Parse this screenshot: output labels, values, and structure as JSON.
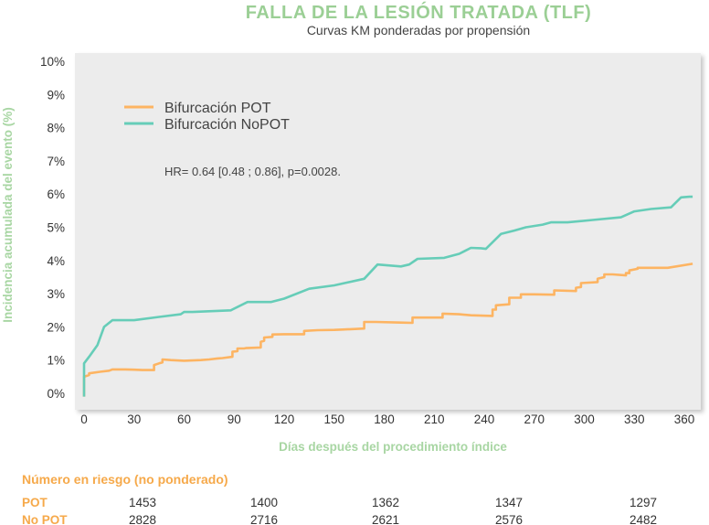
{
  "colors": {
    "title": "#9bcf95",
    "subtitle": "#444444",
    "axis_title": "#a8d6a3",
    "risk_title": "#f6a94a",
    "panel": "#ececec",
    "pot": "#fdb462",
    "nopot": "#66cdb8"
  },
  "chart_data": {
    "type": "line",
    "title": "FALLA DE LA LESIÓN TRATADA (TLF)",
    "subtitle": "Curvas KM ponderadas por propensión",
    "xlabel": "Días después del procedimiento índice",
    "ylabel": "Incidencia acumulada del evento (%)",
    "xlim": [
      0,
      365
    ],
    "ylim": [
      0,
      10
    ],
    "x_ticks": [
      0,
      30,
      60,
      90,
      120,
      150,
      180,
      210,
      240,
      270,
      300,
      330,
      360
    ],
    "y_ticks": [
      0,
      1,
      2,
      3,
      4,
      5,
      6,
      7,
      8,
      9,
      10
    ],
    "y_tick_labels": [
      "0%",
      "1%",
      "2%",
      "3%",
      "4%",
      "5%",
      "6%",
      "7%",
      "8%",
      "9%",
      "10%"
    ],
    "legend_position": "top-left",
    "annotation": "HR= 0.64 [0.48 ; 0.86], p=0.0028.",
    "series": [
      {
        "name": "Bifurcación POT",
        "color": "#fdb462",
        "x": [
          0,
          0,
          3,
          3,
          10,
          15,
          17,
          25,
          30,
          35,
          42,
          42,
          45,
          47,
          47,
          52,
          60,
          65,
          70,
          75,
          80,
          83,
          89,
          89,
          92,
          92,
          96,
          97,
          106,
          106,
          108,
          108,
          113,
          113,
          120,
          132,
          132,
          140,
          150,
          155,
          168,
          168,
          175,
          190,
          197,
          197,
          215,
          215,
          225,
          232,
          245,
          245,
          247,
          247,
          255,
          255,
          262,
          262,
          270,
          282,
          282,
          295,
          295,
          298,
          298,
          308,
          308,
          312,
          312,
          317,
          325,
          325,
          327,
          327,
          332,
          332,
          350,
          365
        ],
        "y": [
          -0.1,
          0.5,
          0.55,
          0.6,
          0.65,
          0.68,
          0.72,
          0.72,
          0.71,
          0.7,
          0.7,
          0.85,
          0.9,
          0.93,
          1.02,
          1.0,
          0.98,
          0.99,
          1.0,
          1.02,
          1.05,
          1.06,
          1.1,
          1.25,
          1.27,
          1.35,
          1.35,
          1.36,
          1.38,
          1.55,
          1.58,
          1.68,
          1.7,
          1.77,
          1.78,
          1.78,
          1.88,
          1.9,
          1.91,
          1.92,
          1.95,
          2.15,
          2.15,
          2.13,
          2.12,
          2.28,
          2.28,
          2.4,
          2.38,
          2.35,
          2.33,
          2.52,
          2.52,
          2.65,
          2.68,
          2.88,
          2.88,
          2.98,
          2.98,
          2.97,
          3.1,
          3.08,
          3.18,
          3.2,
          3.32,
          3.35,
          3.45,
          3.5,
          3.58,
          3.58,
          3.55,
          3.62,
          3.62,
          3.7,
          3.75,
          3.78,
          3.78,
          3.9
        ]
      },
      {
        "name": "Bifurcación NoPOT",
        "color": "#66cdb8",
        "x": [
          0,
          0,
          3,
          8,
          12,
          17,
          30,
          45,
          58,
          60,
          61,
          65,
          88,
          98,
          112,
          120,
          135,
          150,
          168,
          176,
          190,
          195,
          200,
          216,
          225,
          232,
          238,
          241,
          250,
          258,
          265,
          275,
          280,
          290,
          305,
          322,
          330,
          340,
          352,
          358,
          363,
          365
        ],
        "y": [
          -0.1,
          0.9,
          1.1,
          1.45,
          2.0,
          2.2,
          2.2,
          2.3,
          2.38,
          2.45,
          2.45,
          2.45,
          2.5,
          2.75,
          2.75,
          2.85,
          3.15,
          3.25,
          3.45,
          3.88,
          3.82,
          3.88,
          4.05,
          4.08,
          4.2,
          4.38,
          4.37,
          4.35,
          4.8,
          4.9,
          5.0,
          5.08,
          5.15,
          5.15,
          5.22,
          5.3,
          5.48,
          5.55,
          5.6,
          5.9,
          5.92,
          5.92
        ]
      }
    ]
  },
  "risk_table": {
    "title": "Número en riesgo (no ponderado)",
    "rows": [
      {
        "label": "POT",
        "values": [
          "1453",
          "1400",
          "1362",
          "1347",
          "1297"
        ]
      },
      {
        "label": "No POT",
        "values": [
          "2828",
          "2716",
          "2621",
          "2576",
          "2482"
        ]
      }
    ]
  }
}
